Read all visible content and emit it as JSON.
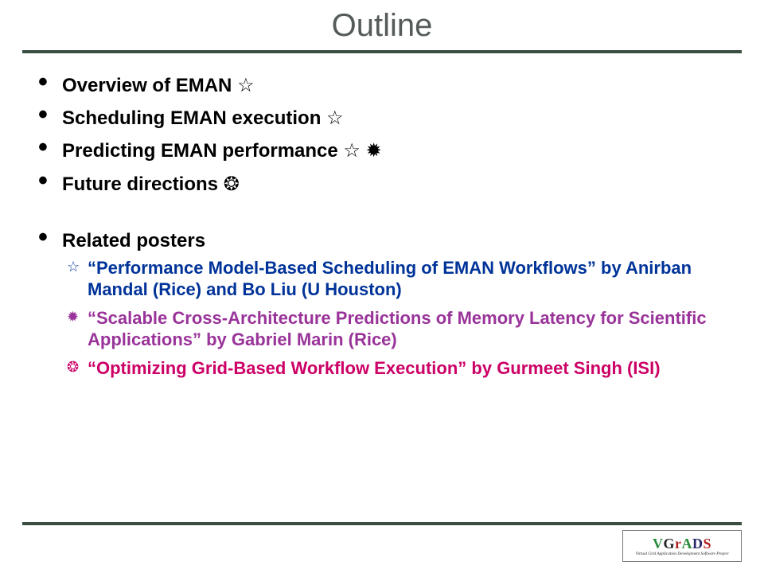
{
  "title": "Outline",
  "bullets": [
    {
      "text": "Overview of EMAN ",
      "suffix_symbols": "☆"
    },
    {
      "text": "Scheduling EMAN execution ",
      "suffix_symbols": "☆"
    },
    {
      "text": "Predicting EMAN performance ",
      "suffix_symbols": "☆ ✹"
    },
    {
      "text": "Future directions ",
      "suffix_symbols": "❂"
    }
  ],
  "related": {
    "heading": "Related posters",
    "items": [
      {
        "bullet": "☆",
        "text": "“Performance Model-Based Scheduling of EMAN Workflows” by Anirban Mandal (Rice) and Bo Liu (U Houston)",
        "color": "#003399"
      },
      {
        "bullet": "✹",
        "text": "“Scalable Cross-Architecture Predictions of Memory Latency for Scientific Applications” by Gabriel Marin (Rice)",
        "color": "#993399"
      },
      {
        "bullet": "❂",
        "text": "“Optimizing Grid-Based Workflow Execution” by Gurmeet Singh (ISI)",
        "color": "#cc0066"
      }
    ]
  },
  "logo": {
    "letters": [
      "V",
      "G",
      "r",
      "A",
      "D",
      "S"
    ],
    "tagline": "Virtual Grid Application Development Software Project"
  },
  "colors": {
    "rule": "#3a4f3f",
    "title": "#555a5a",
    "background": "#ffffff"
  },
  "fonts": {
    "title_family": "Arial",
    "body_family": "Comic Sans MS",
    "title_size_pt": 30,
    "bullet_size_pt": 18,
    "sub_size_pt": 16
  }
}
